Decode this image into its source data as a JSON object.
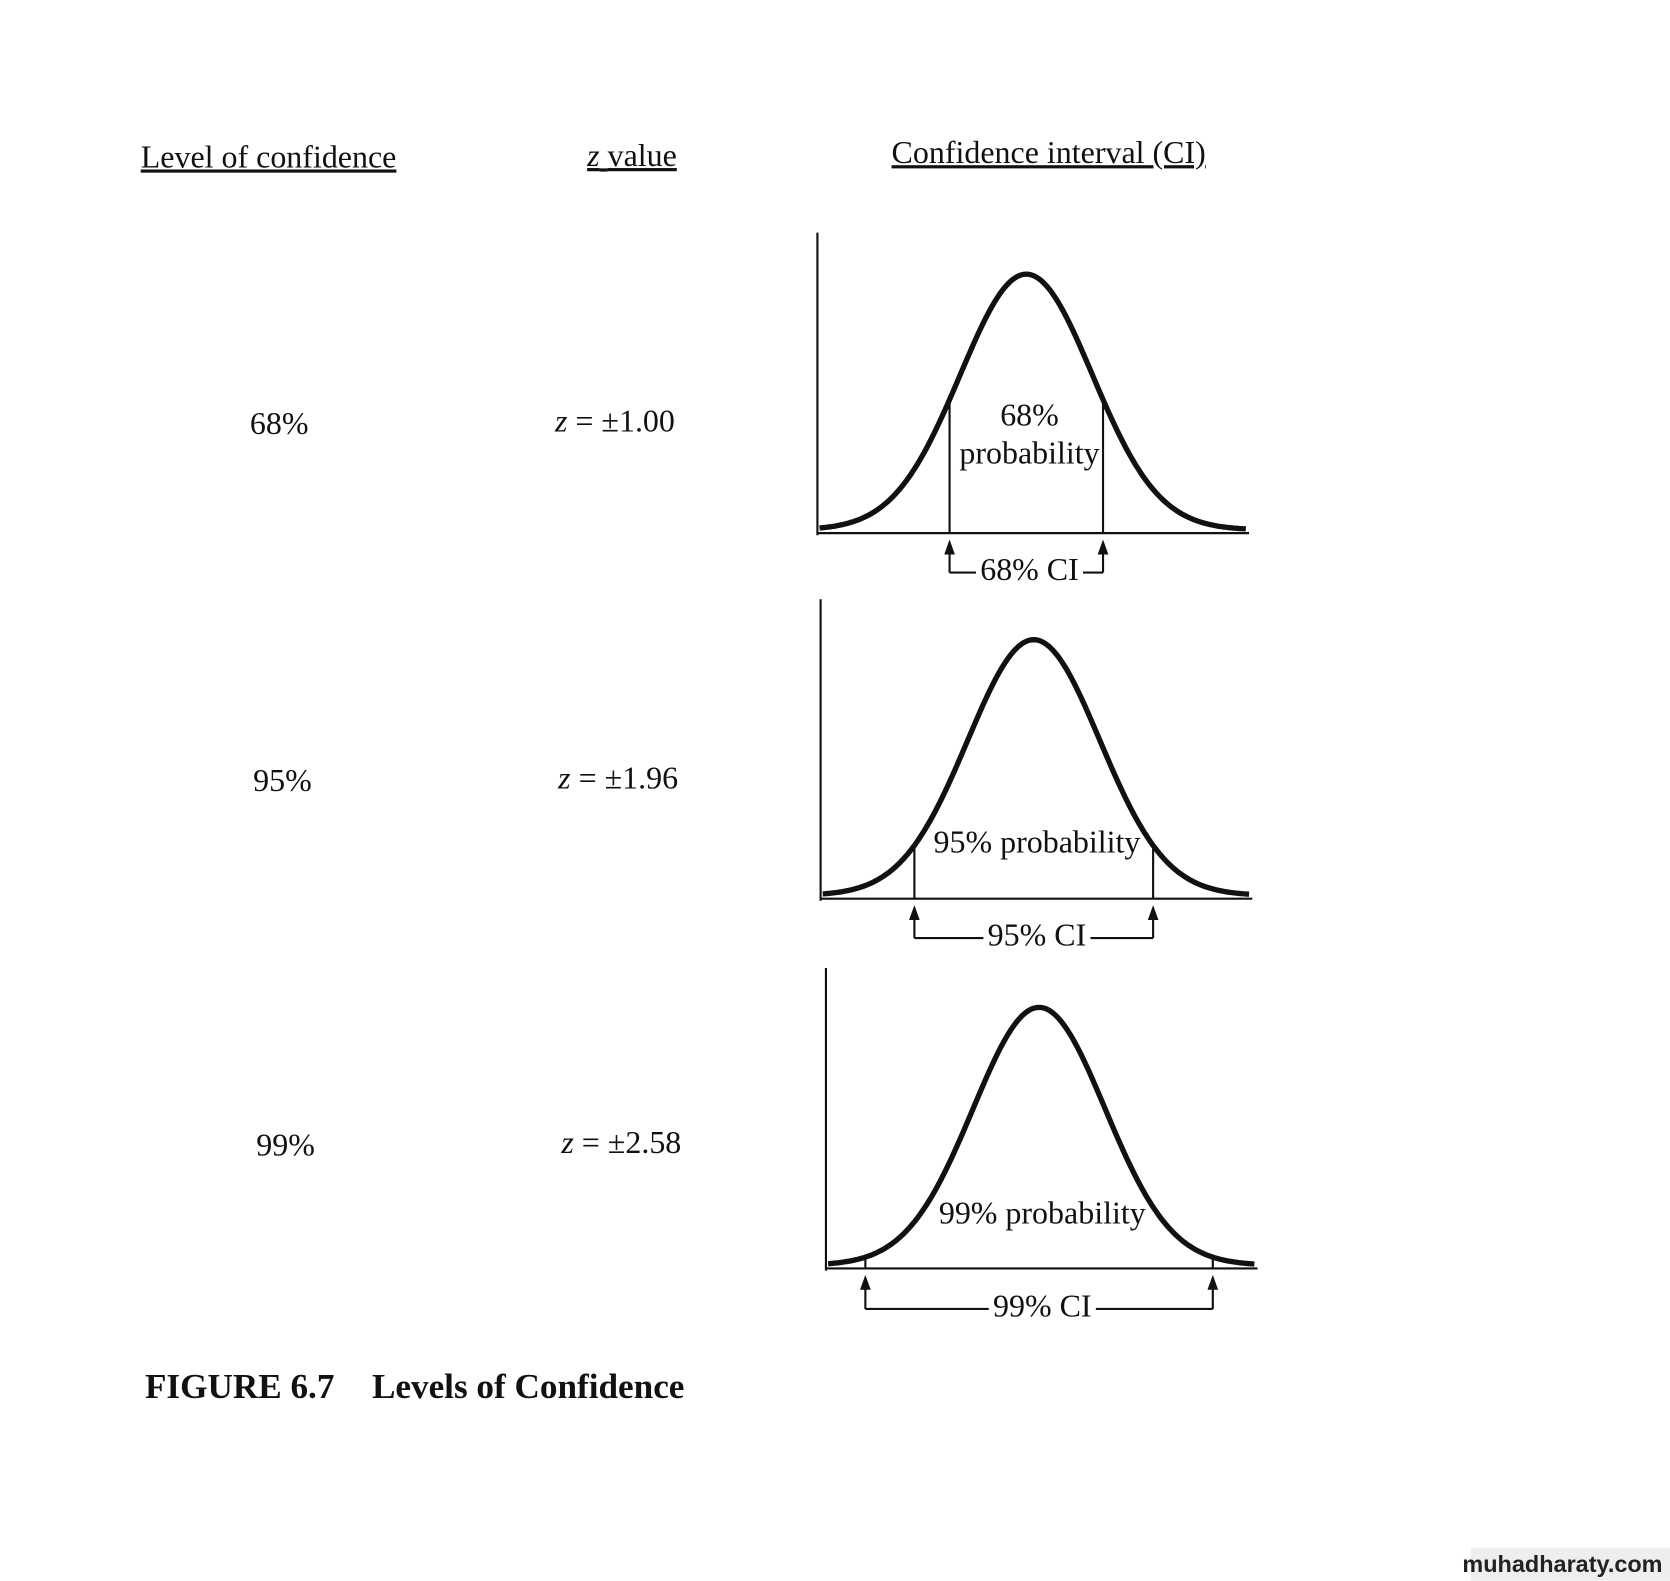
{
  "headers": {
    "level": "Level of confidence",
    "z_value": {
      "symbol": "z",
      "text": "value"
    },
    "interval": "Confidence interval (CI)"
  },
  "rows": [
    {
      "level": "68%",
      "z": {
        "symbol": "z",
        "text": "= ±1.00"
      },
      "probability": [
        "68%",
        "probability"
      ],
      "ci": "68% CI"
    },
    {
      "level": "95%",
      "z": {
        "symbol": "z",
        "text": "= ±1.96"
      },
      "probability": [
        "95% probability"
      ],
      "ci": "95% CI"
    },
    {
      "level": "99%",
      "z": {
        "symbol": "z",
        "text": "= ±2.58"
      },
      "probability": [
        "99% probability"
      ],
      "ci": "99% CI"
    }
  ],
  "caption": {
    "number": "FIGURE 6.7",
    "title": "Levels of Confidence"
  },
  "watermark": "muhadharaty.com"
}
